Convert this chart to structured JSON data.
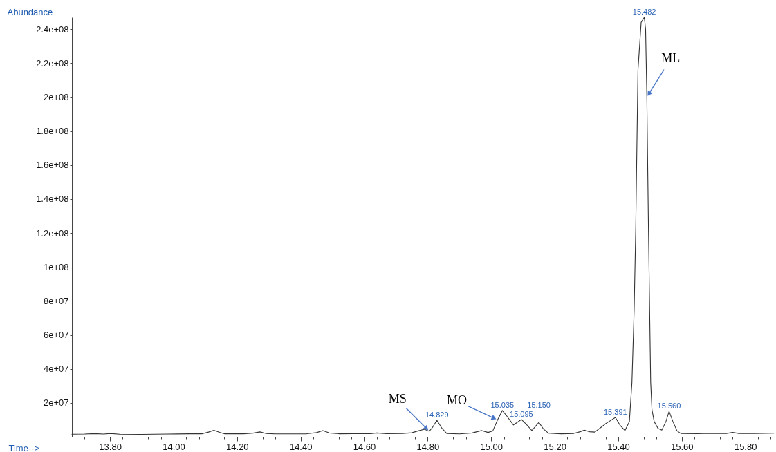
{
  "chart_data": {
    "type": "line",
    "xlabel": "Time-->",
    "ylabel": "Abundance",
    "color": "#333333",
    "x": [
      13.68,
      13.72,
      13.75,
      13.78,
      13.8,
      13.83,
      13.9,
      13.98,
      14.05,
      14.09,
      14.11,
      14.127,
      14.145,
      14.16,
      14.22,
      14.25,
      14.272,
      14.29,
      14.32,
      14.42,
      14.45,
      14.47,
      14.49,
      14.52,
      14.62,
      14.64,
      14.67,
      14.72,
      14.75,
      14.77,
      14.79,
      14.805,
      14.815,
      14.829,
      14.845,
      14.86,
      14.9,
      14.94,
      14.97,
      14.99,
      15.005,
      15.02,
      15.035,
      15.05,
      15.07,
      15.095,
      15.11,
      15.128,
      15.15,
      15.165,
      15.18,
      15.22,
      15.26,
      15.28,
      15.293,
      15.31,
      15.326,
      15.345,
      15.36,
      15.375,
      15.391,
      15.405,
      15.421,
      15.435,
      15.443,
      15.45,
      15.455,
      15.462,
      15.472,
      15.482,
      15.486,
      15.49,
      15.495,
      15.502,
      15.506,
      15.513,
      15.525,
      15.537,
      15.55,
      15.56,
      15.572,
      15.585,
      15.597,
      15.65,
      15.7,
      15.74,
      15.76,
      15.78,
      15.83,
      15.89
    ],
    "values": [
      1500000,
      1600000,
      1900000,
      1600000,
      2000000,
      1500000,
      1400000,
      1600000,
      1800000,
      1800000,
      2800000,
      3900000,
      2600000,
      1800000,
      1800000,
      2200000,
      2900000,
      2000000,
      1700000,
      1800000,
      2500000,
      3700000,
      2300000,
      1800000,
      1900000,
      2300000,
      1900000,
      2000000,
      2400000,
      3500000,
      4500000,
      3300000,
      5500000,
      9800000,
      5000000,
      2000000,
      1700000,
      2300000,
      3700000,
      2600000,
      3500000,
      10000000,
      15500000,
      12000000,
      7000000,
      10200000,
      7500000,
      3700000,
      8500000,
      4500000,
      2200000,
      1800000,
      2000000,
      3000000,
      4000000,
      3000000,
      2800000,
      5500000,
      7700000,
      9500000,
      11400000,
      7000000,
      3700000,
      9000000,
      32000000,
      75000000,
      123000000,
      216000000,
      244000000,
      247000000,
      240000000,
      200000000,
      123000000,
      32000000,
      16000000,
      9000000,
      5000000,
      4000000,
      9000000,
      15000000,
      9000000,
      3500000,
      2000000,
      1900000,
      2000000,
      2000000,
      2600000,
      2000000,
      2000000,
      2200000
    ],
    "xlim": [
      13.68,
      15.89
    ],
    "ylim": [
      0,
      247000000
    ],
    "xticks": [
      {
        "value": 13.72,
        "label": null
      },
      {
        "value": 13.76,
        "label": null
      },
      {
        "value": 13.8,
        "label": "13.80"
      },
      {
        "value": 13.84,
        "label": null
      },
      {
        "value": 13.88,
        "label": null
      },
      {
        "value": 13.92,
        "label": null
      },
      {
        "value": 13.96,
        "label": null
      },
      {
        "value": 14,
        "label": "14.00"
      },
      {
        "value": 14.04,
        "label": null
      },
      {
        "value": 14.08,
        "label": null
      },
      {
        "value": 14.12,
        "label": null
      },
      {
        "value": 14.16,
        "label": null
      },
      {
        "value": 14.2,
        "label": "14.20"
      },
      {
        "value": 14.24,
        "label": null
      },
      {
        "value": 14.28,
        "label": null
      },
      {
        "value": 14.32,
        "label": null
      },
      {
        "value": 14.36,
        "label": null
      },
      {
        "value": 14.4,
        "label": "14.40"
      },
      {
        "value": 14.44,
        "label": null
      },
      {
        "value": 14.48,
        "label": null
      },
      {
        "value": 14.52,
        "label": null
      },
      {
        "value": 14.56,
        "label": null
      },
      {
        "value": 14.6,
        "label": "14.60"
      },
      {
        "value": 14.64,
        "label": null
      },
      {
        "value": 14.68,
        "label": null
      },
      {
        "value": 14.72,
        "label": null
      },
      {
        "value": 14.76,
        "label": null
      },
      {
        "value": 14.8,
        "label": "14.80"
      },
      {
        "value": 14.84,
        "label": null
      },
      {
        "value": 14.88,
        "label": null
      },
      {
        "value": 14.92,
        "label": null
      },
      {
        "value": 14.96,
        "label": null
      },
      {
        "value": 15,
        "label": "15.00"
      },
      {
        "value": 15.04,
        "label": null
      },
      {
        "value": 15.08,
        "label": null
      },
      {
        "value": 15.12,
        "label": null
      },
      {
        "value": 15.16,
        "label": null
      },
      {
        "value": 15.2,
        "label": "15.20"
      },
      {
        "value": 15.24,
        "label": null
      },
      {
        "value": 15.28,
        "label": null
      },
      {
        "value": 15.32,
        "label": null
      },
      {
        "value": 15.36,
        "label": null
      },
      {
        "value": 15.4,
        "label": "15.40"
      },
      {
        "value": 15.44,
        "label": null
      },
      {
        "value": 15.48,
        "label": null
      },
      {
        "value": 15.52,
        "label": null
      },
      {
        "value": 15.56,
        "label": null
      },
      {
        "value": 15.6,
        "label": "15.60"
      },
      {
        "value": 15.64,
        "label": null
      },
      {
        "value": 15.68,
        "label": null
      },
      {
        "value": 15.72,
        "label": null
      },
      {
        "value": 15.76,
        "label": null
      },
      {
        "value": 15.8,
        "label": "15.80"
      },
      {
        "value": 15.84,
        "label": null
      },
      {
        "value": 15.88,
        "label": null
      }
    ],
    "yticks": [
      {
        "value": 20000000,
        "label": "2e+07"
      },
      {
        "value": 40000000,
        "label": "4e+07"
      },
      {
        "value": 60000000,
        "label": "6e+07"
      },
      {
        "value": 80000000,
        "label": "8e+07"
      },
      {
        "value": 100000000,
        "label": "1e+08"
      },
      {
        "value": 120000000,
        "label": "1.2e+08"
      },
      {
        "value": 140000000,
        "label": "1.4e+08"
      },
      {
        "value": 160000000,
        "label": "1.6e+08"
      },
      {
        "value": 180000000,
        "label": "1.8e+08"
      },
      {
        "value": 200000000,
        "label": "2e+08"
      },
      {
        "value": 220000000,
        "label": "2.2e+08"
      },
      {
        "value": 240000000,
        "label": "2.4e+08"
      }
    ],
    "annotations": [
      {
        "text": "14.829",
        "x": 14.829,
        "y": 9800000
      },
      {
        "text": "15.035",
        "x": 15.035,
        "y": 15500000
      },
      {
        "text": "15.095",
        "x": 15.095,
        "y": 10200000
      },
      {
        "text": "15.150",
        "x": 15.15,
        "y": 8500000
      },
      {
        "text": "15.391",
        "x": 15.391,
        "y": 11400000
      },
      {
        "text": "15.482",
        "x": 15.482,
        "y": 247000000
      },
      {
        "text": "15.560",
        "x": 15.56,
        "y": 15000000
      },
      {
        "text": "MS",
        "x": 14.805,
        "y": 3300000
      },
      {
        "text": "MO",
        "x": 15.02,
        "y": 10000000
      },
      {
        "text": "ML",
        "x": 15.49,
        "y": 200000000
      }
    ]
  }
}
